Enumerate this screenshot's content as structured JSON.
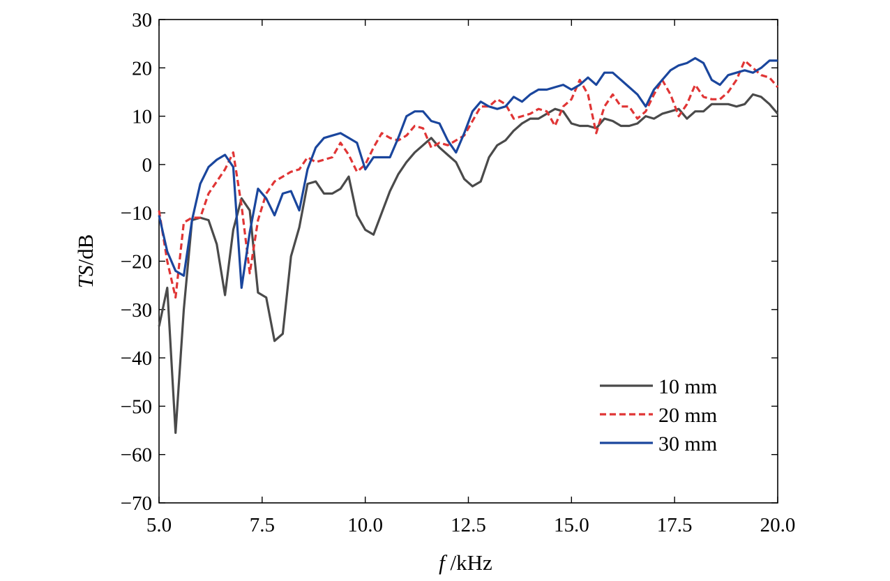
{
  "chart_data": {
    "type": "line",
    "xlabel": {
      "italic": "f",
      "rest": " /kHz"
    },
    "ylabel": {
      "italic": "TS",
      "rest": "/dB"
    },
    "xlim": [
      5,
      20
    ],
    "ylim": [
      -70,
      30
    ],
    "xticks": [
      "5.0",
      "7.5",
      "10.0",
      "12.5",
      "15.0",
      "17.5",
      "20.0"
    ],
    "xtick_values": [
      5,
      7.5,
      10,
      12.5,
      15,
      17.5,
      20
    ],
    "yticks": [
      "30",
      "20",
      "10",
      "0",
      "−10",
      "−20",
      "−30",
      "−40",
      "−50",
      "−60",
      "−70"
    ],
    "ytick_values": [
      30,
      20,
      10,
      0,
      -10,
      -20,
      -30,
      -40,
      -50,
      -60,
      -70
    ],
    "grid": false,
    "legend_position": "bottom-right",
    "series": [
      {
        "name": "10 mm",
        "color": "#4a4a4a",
        "dash": "solid",
        "x": [
          5.0,
          5.2,
          5.4,
          5.6,
          5.8,
          6.0,
          6.2,
          6.4,
          6.6,
          6.8,
          7.0,
          7.2,
          7.4,
          7.6,
          7.8,
          8.0,
          8.2,
          8.4,
          8.6,
          8.8,
          9.0,
          9.2,
          9.4,
          9.6,
          9.8,
          10.0,
          10.2,
          10.4,
          10.6,
          10.8,
          11.0,
          11.2,
          11.4,
          11.6,
          11.8,
          12.0,
          12.2,
          12.4,
          12.6,
          12.8,
          13.0,
          13.2,
          13.4,
          13.6,
          13.8,
          14.0,
          14.2,
          14.4,
          14.6,
          14.8,
          15.0,
          15.2,
          15.4,
          15.6,
          15.8,
          16.0,
          16.2,
          16.4,
          16.6,
          16.8,
          17.0,
          17.2,
          17.4,
          17.6,
          17.8,
          18.0,
          18.2,
          18.4,
          18.6,
          18.8,
          19.0,
          19.2,
          19.4,
          19.6,
          19.8,
          20.0
        ],
        "values": [
          -33.5,
          -25.5,
          -55.5,
          -30.0,
          -11.5,
          -11.0,
          -11.5,
          -16.5,
          -27.0,
          -13.5,
          -7.0,
          -9.5,
          -26.5,
          -27.5,
          -36.5,
          -35.0,
          -19.0,
          -13.0,
          -4.0,
          -3.5,
          -6.0,
          -6.0,
          -5.0,
          -2.5,
          -10.5,
          -13.5,
          -14.5,
          -10.0,
          -5.5,
          -2.0,
          0.5,
          2.5,
          4.0,
          5.5,
          3.5,
          2.0,
          0.5,
          -3.0,
          -4.5,
          -3.5,
          1.5,
          4.0,
          5.0,
          7.0,
          8.5,
          9.5,
          9.5,
          10.5,
          11.5,
          11.0,
          8.5,
          8.0,
          8.0,
          7.5,
          9.5,
          9.0,
          8.0,
          8.0,
          8.5,
          10.0,
          9.5,
          10.5,
          11.0,
          11.5,
          9.5,
          11.0,
          11.0,
          12.5,
          12.5,
          12.5,
          12.0,
          12.5,
          14.5,
          14.0,
          12.5,
          10.5
        ]
      },
      {
        "name": "20 mm",
        "color": "#e03535",
        "dash": "dashed",
        "x": [
          5.0,
          5.2,
          5.4,
          5.6,
          5.8,
          6.0,
          6.2,
          6.4,
          6.6,
          6.8,
          7.0,
          7.2,
          7.4,
          7.6,
          7.8,
          8.0,
          8.2,
          8.4,
          8.6,
          8.8,
          9.0,
          9.2,
          9.4,
          9.6,
          9.8,
          10.0,
          10.2,
          10.4,
          10.6,
          10.8,
          11.0,
          11.2,
          11.4,
          11.6,
          11.8,
          12.0,
          12.2,
          12.4,
          12.6,
          12.8,
          13.0,
          13.2,
          13.4,
          13.6,
          13.8,
          14.0,
          14.2,
          14.4,
          14.6,
          14.8,
          15.0,
          15.2,
          15.4,
          15.6,
          15.8,
          16.0,
          16.2,
          16.4,
          16.6,
          16.8,
          17.0,
          17.2,
          17.4,
          17.6,
          17.8,
          18.0,
          18.2,
          18.4,
          18.6,
          18.8,
          19.0,
          19.2,
          19.4,
          19.6,
          19.8,
          20.0
        ],
        "values": [
          -9.5,
          -20.0,
          -27.5,
          -12.0,
          -11.0,
          -11.0,
          -6.0,
          -3.5,
          -1.0,
          2.5,
          -8.5,
          -22.5,
          -11.5,
          -6.0,
          -3.5,
          -2.5,
          -1.5,
          -1.0,
          1.5,
          0.5,
          1.0,
          1.5,
          4.5,
          2.0,
          -1.5,
          0.0,
          3.5,
          6.5,
          5.5,
          5.0,
          6.0,
          8.0,
          7.5,
          3.5,
          4.5,
          4.0,
          5.0,
          6.0,
          9.0,
          12.0,
          12.0,
          13.5,
          12.5,
          9.5,
          10.0,
          10.5,
          11.5,
          11.0,
          8.0,
          12.0,
          13.5,
          17.5,
          14.5,
          6.5,
          12.0,
          14.5,
          12.0,
          12.0,
          9.5,
          11.0,
          14.5,
          17.5,
          14.5,
          10.0,
          12.5,
          16.5,
          14.0,
          13.5,
          13.5,
          15.0,
          17.5,
          21.5,
          20.0,
          18.5,
          18.0,
          16.0
        ]
      },
      {
        "name": "30 mm",
        "color": "#1a469d",
        "dash": "solid",
        "x": [
          5.0,
          5.2,
          5.4,
          5.6,
          5.8,
          6.0,
          6.2,
          6.4,
          6.6,
          6.8,
          7.0,
          7.2,
          7.4,
          7.6,
          7.8,
          8.0,
          8.2,
          8.4,
          8.6,
          8.8,
          9.0,
          9.2,
          9.4,
          9.6,
          9.8,
          10.0,
          10.2,
          10.4,
          10.6,
          10.8,
          11.0,
          11.2,
          11.4,
          11.6,
          11.8,
          12.0,
          12.2,
          12.4,
          12.6,
          12.8,
          13.0,
          13.2,
          13.4,
          13.6,
          13.8,
          14.0,
          14.2,
          14.4,
          14.6,
          14.8,
          15.0,
          15.2,
          15.4,
          15.6,
          15.8,
          16.0,
          16.2,
          16.4,
          16.6,
          16.8,
          17.0,
          17.2,
          17.4,
          17.6,
          17.8,
          18.0,
          18.2,
          18.4,
          18.6,
          18.8,
          19.0,
          19.2,
          19.4,
          19.6,
          19.8,
          20.0
        ],
        "values": [
          -10.5,
          -18.0,
          -22.0,
          -23.0,
          -11.5,
          -4.0,
          -0.5,
          1.0,
          2.0,
          -0.5,
          -25.5,
          -14.0,
          -5.0,
          -7.0,
          -10.5,
          -6.0,
          -5.5,
          -9.5,
          -1.0,
          3.5,
          5.5,
          6.0,
          6.5,
          5.5,
          4.5,
          -1.0,
          1.5,
          1.5,
          1.5,
          5.5,
          10.0,
          11.0,
          11.0,
          9.0,
          8.5,
          5.0,
          2.5,
          6.5,
          11.0,
          13.0,
          12.0,
          11.5,
          12.0,
          14.0,
          13.0,
          14.5,
          15.5,
          15.5,
          16.0,
          16.5,
          15.5,
          16.5,
          18.0,
          16.5,
          19.0,
          19.0,
          17.5,
          16.0,
          14.5,
          12.0,
          15.5,
          17.5,
          19.5,
          20.5,
          21.0,
          22.0,
          21.0,
          17.5,
          16.5,
          18.5,
          19.0,
          19.5,
          19.0,
          20.0,
          21.5,
          21.5
        ]
      }
    ]
  }
}
